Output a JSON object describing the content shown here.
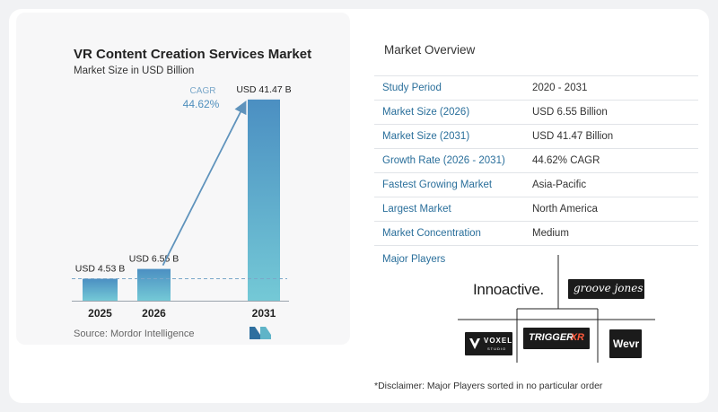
{
  "chart_data": {
    "type": "bar",
    "title": "VR Content Creation Services Market",
    "subtitle": "Market Size in USD Billion",
    "categories": [
      "2025",
      "2026",
      "2031"
    ],
    "values": [
      4.53,
      6.55,
      41.47
    ],
    "data_labels": [
      "USD 4.53 B",
      "USD 6.55 B",
      "USD 41.47 B"
    ],
    "cagr_label": "CAGR",
    "cagr_value": "44.62%",
    "ylim": [
      0,
      42
    ],
    "grid": false,
    "colors": {
      "bar_light": "#74c9d6",
      "bar_dark": "#4b8fc2",
      "arrow": "#5f93bc"
    }
  },
  "source": "Source:  Mordor Intelligence",
  "overview": {
    "title": "Market Overview",
    "rows": [
      {
        "label": "Study Period",
        "value": "2020 - 2031"
      },
      {
        "label": "Market Size (2026)",
        "value": "USD 6.55 Billion"
      },
      {
        "label": "Market Size (2031)",
        "value": "USD 41.47 Billion"
      },
      {
        "label": "Growth Rate (2026 - 2031)",
        "value": "44.62% CAGR"
      },
      {
        "label": "Fastest Growing Market",
        "value": "Asia-Pacific"
      },
      {
        "label": "Largest Market",
        "value": "North America"
      },
      {
        "label": "Market Concentration",
        "value": "Medium"
      }
    ]
  },
  "players": {
    "label": "Major Players",
    "logos": {
      "innoactive": "Innoactive.",
      "groove_jones": "groove jones",
      "voxel": "VOXEL",
      "voxel_sub": "STUDIO",
      "trigger": "TRIGGER",
      "trigger_xr": "XR",
      "wevr": "Wevr"
    }
  },
  "disclaimer": "*Disclaimer: Major Players sorted in no particular order"
}
